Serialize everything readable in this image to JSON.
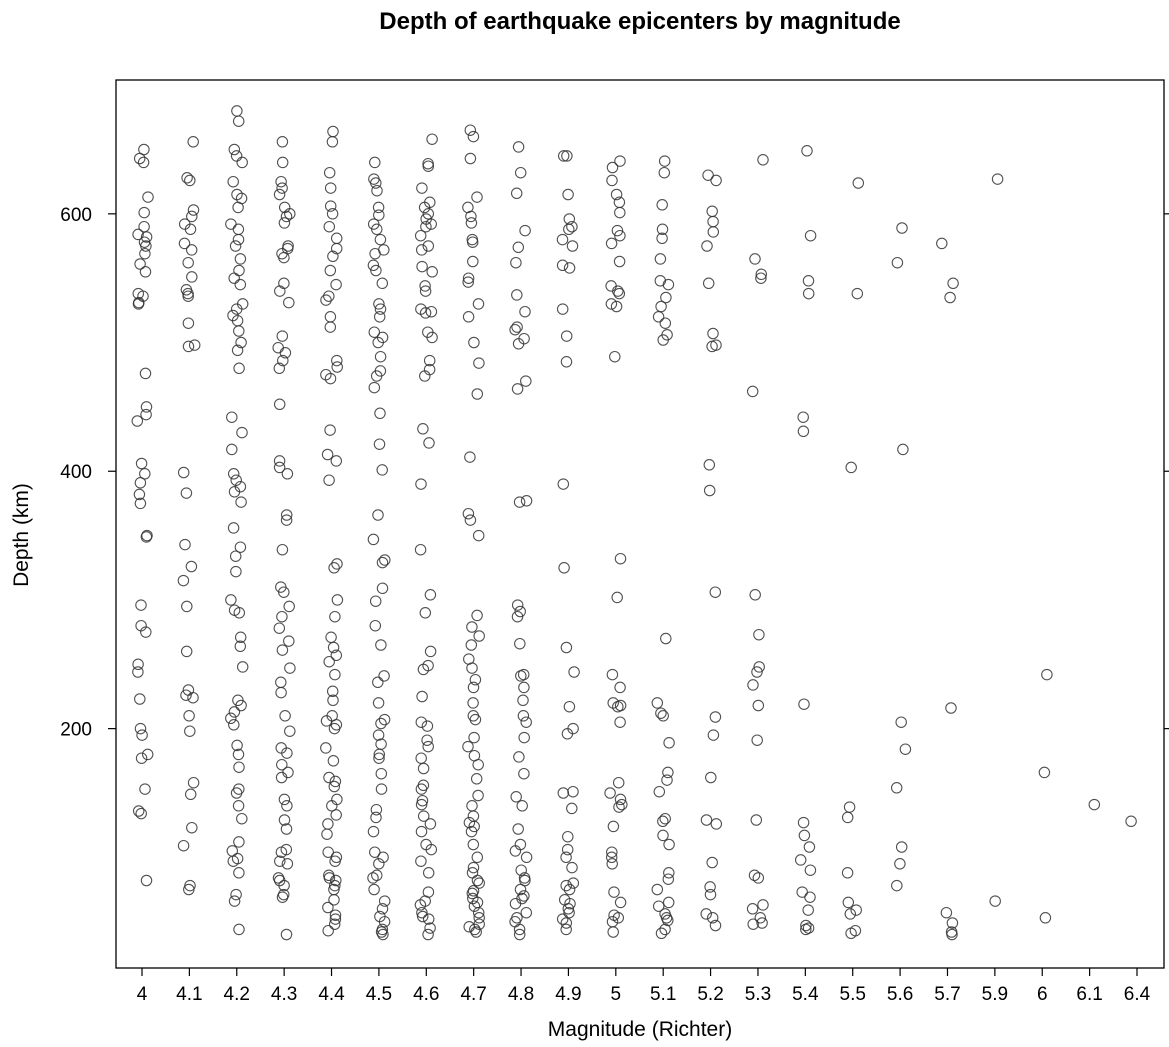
{
  "chart_data": {
    "type": "scatter",
    "title": "Depth of earthquake epicenters by magnitude",
    "xlabel": "Magnitude (Richter)",
    "ylabel": "Depth (km)",
    "x_categories": [
      "4",
      "4.1",
      "4.2",
      "4.3",
      "4.4",
      "4.5",
      "4.6",
      "4.7",
      "4.8",
      "4.9",
      "5",
      "5.1",
      "5.2",
      "5.3",
      "5.4",
      "5.5",
      "5.6",
      "5.7",
      "5.9",
      "6",
      "6.1",
      "6.4"
    ],
    "y_ticks": [
      200,
      400,
      600
    ],
    "ylim": [
      14,
      704
    ],
    "grid": false,
    "legend": "none",
    "marker": "open-circle",
    "jittered": true,
    "series": [
      {
        "points": [
          {
            "x": "4",
            "depths": [
              650,
              643,
              640,
              613,
              601,
              590,
              584,
              582,
              578,
              575,
              569,
              561,
              555,
              538,
              536,
              531,
              530,
              476,
              450,
              444,
              439,
              406,
              398,
              391,
              382,
              375,
              350,
              349,
              296,
              280,
              275,
              250,
              244,
              223,
              200,
              195,
              180,
              177,
              153,
              136,
              134,
              82
            ]
          },
          {
            "x": "4.1",
            "depths": [
              656,
              628,
              626,
              603,
              598,
              592,
              588,
              577,
              572,
              562,
              551,
              541,
              538,
              536,
              515,
              498,
              497,
              399,
              383,
              343,
              326,
              315,
              295,
              260,
              230,
              226,
              224,
              210,
              198,
              158,
              149,
              123,
              109,
              78,
              75
            ]
          },
          {
            "x": "4.2",
            "depths": [
              680,
              672,
              650,
              645,
              640,
              625,
              615,
              612,
              605,
              592,
              588,
              580,
              575,
              565,
              556,
              550,
              545,
              530,
              526,
              521,
              517,
              509,
              500,
              494,
              480,
              442,
              430,
              417,
              398,
              393,
              388,
              384,
              376,
              356,
              341,
              334,
              322,
              300,
              292,
              290,
              271,
              264,
              248,
              222,
              218,
              213,
              208,
              203,
              187,
              180,
              170,
              153,
              150,
              140,
              130,
              112,
              105,
              99,
              97,
              88,
              71,
              66,
              44
            ]
          },
          {
            "x": "4.3",
            "depths": [
              656,
              640,
              625,
              620,
              615,
              605,
              600,
              598,
              593,
              575,
              573,
              569,
              566,
              546,
              540,
              531,
              505,
              496,
              492,
              486,
              480,
              452,
              408,
              403,
              398,
              366,
              362,
              339,
              310,
              306,
              295,
              287,
              278,
              268,
              261,
              247,
              236,
              228,
              210,
              198,
              185,
              181,
              172,
              166,
              162,
              145,
              140,
              129,
              122,
              106,
              104,
              97,
              95,
              84,
              82,
              78,
              71,
              69,
              40
            ]
          },
          {
            "x": "4.4",
            "depths": [
              664,
              656,
              632,
              620,
              606,
              600,
              590,
              581,
              573,
              567,
              556,
              545,
              536,
              533,
              520,
              512,
              486,
              481,
              475,
              472,
              432,
              413,
              408,
              393,
              328,
              325,
              300,
              287,
              271,
              263,
              257,
              252,
              242,
              229,
              222,
              210,
              206,
              203,
              200,
              185,
              175,
              162,
              159,
              155,
              145,
              140,
              133,
              126,
              118,
              104,
              100,
              97,
              86,
              84,
              82,
              78,
              75,
              67,
              61,
              55,
              52,
              48,
              43
            ]
          },
          {
            "x": "4.5",
            "depths": [
              640,
              627,
              624,
              618,
              605,
              599,
              592,
              588,
              580,
              572,
              569,
              560,
              556,
              546,
              530,
              526,
              520,
              508,
              504,
              500,
              489,
              478,
              474,
              465,
              445,
              421,
              401,
              366,
              347,
              331,
              329,
              309,
              299,
              280,
              265,
              241,
              236,
              220,
              207,
              204,
              195,
              188,
              180,
              177,
              165,
              153,
              137,
              131,
              120,
              104,
              100,
              95,
              86,
              84,
              75,
              66,
              60,
              54,
              50,
              44,
              42,
              40
            ]
          },
          {
            "x": "4.6",
            "depths": [
              658,
              639,
              637,
              620,
              609,
              605,
              600,
              596,
              592,
              590,
              583,
              575,
              572,
              559,
              555,
              544,
              540,
              526,
              524,
              523,
              508,
              504,
              486,
              479,
              474,
              433,
              422,
              390,
              339,
              304,
              290,
              260,
              249,
              246,
              225,
              205,
              202,
              191,
              186,
              177,
              169,
              156,
              153,
              144,
              141,
              132,
              126,
              120,
              110,
              106,
              97,
              88,
              73,
              66,
              63,
              57,
              54,
              52,
              45,
              40
            ]
          },
          {
            "x": "4.7",
            "depths": [
              665,
              660,
              643,
              613,
              605,
              598,
              593,
              580,
              578,
              563,
              550,
              547,
              530,
              520,
              500,
              484,
              460,
              411,
              367,
              362,
              350,
              288,
              279,
              272,
              265,
              254,
              247,
              238,
              232,
              220,
              210,
              207,
              193,
              186,
              179,
              172,
              161,
              148,
              140,
              132,
              127,
              124,
              120,
              110,
              100,
              92,
              88,
              82,
              80,
              74,
              72,
              68,
              65,
              62,
              57,
              53,
              48,
              46,
              44,
              42
            ]
          },
          {
            "x": "4.8",
            "depths": [
              652,
              632,
              616,
              587,
              574,
              562,
              537,
              524,
              512,
              510,
              503,
              499,
              470,
              464,
              377,
              376,
              296,
              291,
              287,
              266,
              242,
              241,
              232,
              222,
              210,
              205,
              193,
              178,
              165,
              147,
              140,
              122,
              110,
              105,
              100,
              90,
              84,
              82,
              75,
              70,
              68,
              64,
              57,
              53,
              50,
              44,
              40
            ]
          },
          {
            "x": "4.9",
            "depths": [
              645,
              645,
              615,
              596,
              590,
              588,
              580,
              575,
              560,
              558,
              526,
              505,
              485,
              390,
              325,
              263,
              244,
              217,
              200,
              196,
              151,
              150,
              138,
              116,
              106,
              100,
              92,
              80,
              78,
              75,
              67,
              64,
              60,
              57,
              52,
              49,
              44
            ]
          },
          {
            "x": "5",
            "depths": [
              641,
              636,
              626,
              615,
              609,
              601,
              587,
              583,
              577,
              563,
              544,
              540,
              538,
              530,
              528,
              489,
              332,
              302,
              242,
              232,
              220,
              218,
              217,
              205,
              158,
              150,
              145,
              141,
              139,
              124,
              104,
              100,
              95,
              73,
              65,
              55,
              53,
              50,
              42
            ]
          },
          {
            "x": "5.1",
            "depths": [
              641,
              632,
              607,
              588,
              581,
              565,
              548,
              545,
              535,
              528,
              520,
              515,
              506,
              502,
              270,
              220,
              212,
              210,
              189,
              166,
              160,
              151,
              130,
              128,
              117,
              110,
              88,
              83,
              75,
              65,
              62,
              56,
              53,
              51,
              44,
              41
            ]
          },
          {
            "x": "5.2",
            "depths": [
              630,
              626,
              602,
              594,
              586,
              575,
              546,
              507,
              498,
              497,
              405,
              385,
              306,
              209,
              195,
              162,
              129,
              126,
              96,
              77,
              71,
              56,
              53,
              47
            ]
          },
          {
            "x": "5.3",
            "depths": [
              642,
              565,
              553,
              550,
              462,
              304,
              273,
              248,
              244,
              234,
              218,
              191,
              129,
              86,
              84,
              63,
              60,
              53,
              49,
              48
            ]
          },
          {
            "x": "5.4",
            "depths": [
              649,
              583,
              548,
              538,
              442,
              431,
              219,
              127,
              117,
              108,
              98,
              90,
              73,
              69,
              59,
              47,
              45,
              44
            ]
          },
          {
            "x": "5.5",
            "depths": [
              624,
              538,
              403,
              139,
              131,
              88,
              65,
              59,
              56,
              43,
              41
            ]
          },
          {
            "x": "5.6",
            "depths": [
              589,
              562,
              417,
              205,
              184,
              154,
              108,
              95,
              78
            ]
          },
          {
            "x": "5.7",
            "depths": [
              577,
              546,
              535,
              216,
              57,
              49,
              42,
              40
            ]
          },
          {
            "x": "5.9",
            "depths": [
              627,
              66
            ]
          },
          {
            "x": "6",
            "depths": [
              242,
              166,
              53
            ]
          },
          {
            "x": "6.1",
            "depths": [
              141
            ]
          },
          {
            "x": "6.4",
            "depths": [
              128
            ]
          }
        ]
      }
    ]
  }
}
